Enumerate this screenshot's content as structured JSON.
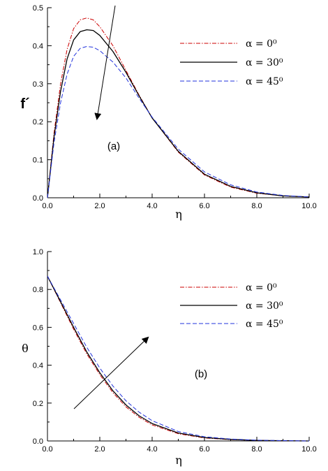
{
  "chart_data": [
    {
      "type": "line",
      "panel_label": "(a)",
      "xlabel": "η",
      "ylabel": "f´",
      "xlim": [
        0,
        10
      ],
      "ylim": [
        0,
        0.5
      ],
      "xticks": [
        "0.0",
        "2.0",
        "4.0",
        "6.0",
        "8.0",
        "10.0"
      ],
      "yticks": [
        "0.0",
        "0.1",
        "0.2",
        "0.3",
        "0.4",
        "0.5"
      ],
      "legend_position": "top-right",
      "series": [
        {
          "name": "α = 0⁰",
          "color": "#cc0000",
          "style": "dash-dot",
          "x": [
            0,
            0.25,
            0.5,
            0.75,
            1.0,
            1.25,
            1.5,
            1.75,
            2.0,
            2.5,
            3.0,
            3.5,
            4.0,
            5.0,
            6.0,
            7.0,
            8.0,
            9.0,
            10.0
          ],
          "y": [
            0,
            0.17,
            0.3,
            0.39,
            0.445,
            0.468,
            0.473,
            0.468,
            0.45,
            0.4,
            0.335,
            0.27,
            0.21,
            0.12,
            0.06,
            0.028,
            0.012,
            0.005,
            0.002
          ]
        },
        {
          "name": "α = 30⁰",
          "color": "#000000",
          "style": "solid",
          "x": [
            0,
            0.25,
            0.5,
            0.75,
            1.0,
            1.25,
            1.5,
            1.75,
            2.0,
            2.5,
            3.0,
            3.5,
            4.0,
            5.0,
            6.0,
            7.0,
            8.0,
            9.0,
            10.0
          ],
          "y": [
            0,
            0.16,
            0.28,
            0.365,
            0.415,
            0.437,
            0.442,
            0.44,
            0.427,
            0.385,
            0.33,
            0.268,
            0.21,
            0.122,
            0.062,
            0.03,
            0.013,
            0.005,
            0.002
          ]
        },
        {
          "name": "α = 45⁰",
          "color": "#2233dd",
          "style": "dashed",
          "x": [
            0,
            0.25,
            0.5,
            0.75,
            1.0,
            1.25,
            1.5,
            1.75,
            2.0,
            2.5,
            3.0,
            3.5,
            4.0,
            5.0,
            6.0,
            7.0,
            8.0,
            9.0,
            10.0
          ],
          "y": [
            0,
            0.145,
            0.25,
            0.325,
            0.372,
            0.393,
            0.398,
            0.396,
            0.387,
            0.357,
            0.315,
            0.262,
            0.212,
            0.128,
            0.068,
            0.034,
            0.015,
            0.006,
            0.002
          ]
        }
      ]
    },
    {
      "type": "line",
      "panel_label": "(b)",
      "xlabel": "η",
      "ylabel": "θ",
      "xlim": [
        0,
        10
      ],
      "ylim": [
        0,
        1.0
      ],
      "xticks": [
        "0.0",
        "2.0",
        "4.0",
        "6.0",
        "8.0",
        "10.0"
      ],
      "yticks": [
        "0.0",
        "0.2",
        "0.4",
        "0.6",
        "0.8",
        "1.0"
      ],
      "legend_position": "top-right",
      "series": [
        {
          "name": "α = 0⁰",
          "color": "#cc0000",
          "style": "dash-dot",
          "x": [
            0,
            0.5,
            1.0,
            1.5,
            2.0,
            2.5,
            3.0,
            3.5,
            4.0,
            5.0,
            6.0,
            7.0,
            8.0,
            9.0,
            10.0
          ],
          "y": [
            0.87,
            0.73,
            0.59,
            0.46,
            0.35,
            0.255,
            0.18,
            0.125,
            0.085,
            0.038,
            0.016,
            0.007,
            0.003,
            0.001,
            0.0
          ]
        },
        {
          "name": "α = 30⁰",
          "color": "#000000",
          "style": "solid",
          "x": [
            0,
            0.5,
            1.0,
            1.5,
            2.0,
            2.5,
            3.0,
            3.5,
            4.0,
            5.0,
            6.0,
            7.0,
            8.0,
            9.0,
            10.0
          ],
          "y": [
            0.87,
            0.735,
            0.6,
            0.47,
            0.36,
            0.265,
            0.19,
            0.133,
            0.092,
            0.042,
            0.018,
            0.008,
            0.003,
            0.001,
            0.0
          ]
        },
        {
          "name": "α = 45⁰",
          "color": "#2233dd",
          "style": "dashed",
          "x": [
            0,
            0.5,
            1.0,
            1.5,
            2.0,
            2.5,
            3.0,
            3.5,
            4.0,
            5.0,
            6.0,
            7.0,
            8.0,
            9.0,
            10.0
          ],
          "y": [
            0.87,
            0.745,
            0.62,
            0.495,
            0.385,
            0.29,
            0.212,
            0.152,
            0.107,
            0.05,
            0.022,
            0.01,
            0.004,
            0.002,
            0.0
          ]
        }
      ]
    }
  ]
}
